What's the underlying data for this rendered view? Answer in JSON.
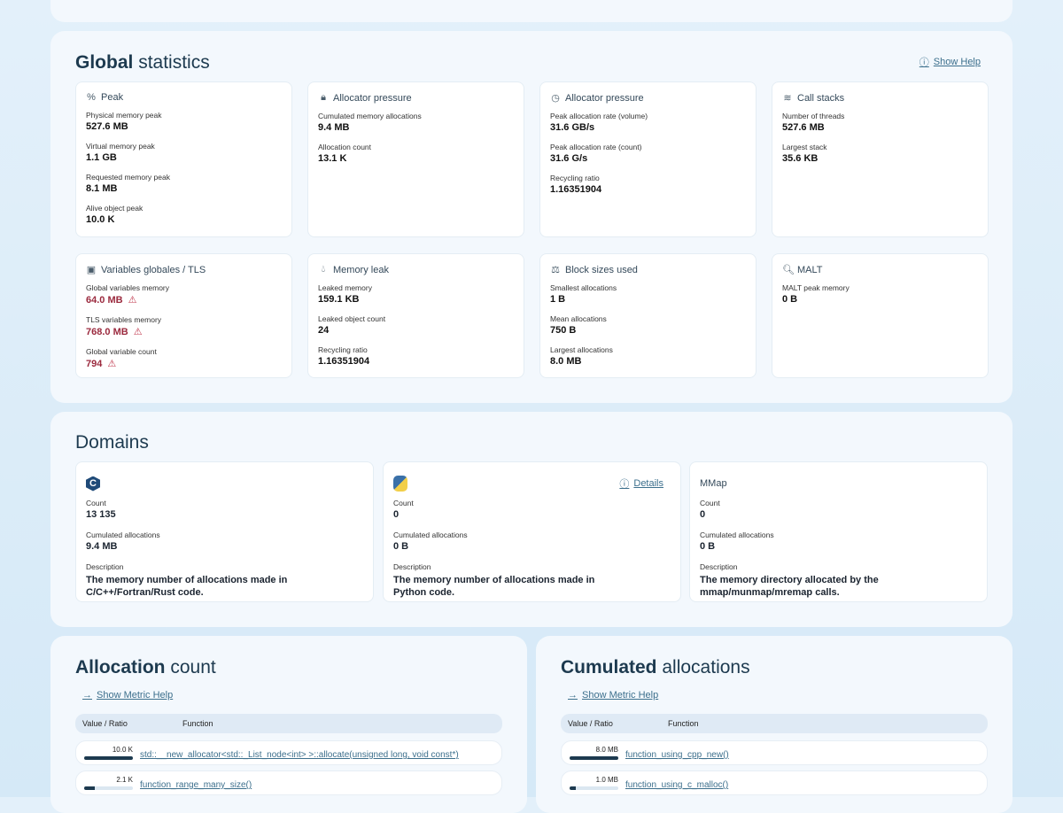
{
  "global": {
    "title_bold": "Global",
    "title_rest": "statistics",
    "help_label": "Show Help",
    "cards": [
      {
        "icon": "percent-icon",
        "glyph": "%",
        "title": "Peak",
        "metrics": [
          {
            "label": "Physical memory peak",
            "value": "527.6 MB"
          },
          {
            "label": "Virtual memory peak",
            "value": "1.1 GB"
          },
          {
            "label": "Requested memory peak",
            "value": "8.1 MB"
          },
          {
            "label": "Alive object peak",
            "value": "10.0 K"
          }
        ]
      },
      {
        "icon": "lock-icon",
        "glyph": "🔒︎",
        "title": "Allocator pressure",
        "metrics": [
          {
            "label": "Cumulated memory allocations",
            "value": "9.4 MB"
          },
          {
            "label": "Allocation count",
            "value": "13.1 K"
          }
        ]
      },
      {
        "icon": "timer-icon",
        "glyph": "◷",
        "title": "Allocator pressure",
        "metrics": [
          {
            "label": "Peak allocation rate (volume)",
            "value": "31.6 GB/s"
          },
          {
            "label": "Peak allocation rate (count)",
            "value": "31.6 G/s"
          },
          {
            "label": "Recycling ratio",
            "value": "1.16351904"
          }
        ]
      },
      {
        "icon": "layers-icon",
        "glyph": "≋",
        "title": "Call stacks",
        "metrics": [
          {
            "label": "Number of threads",
            "value": "527.6 MB"
          },
          {
            "label": "Largest stack",
            "value": "35.6 KB"
          }
        ]
      },
      {
        "icon": "memory-chip-icon",
        "glyph": "▣",
        "title": "Variables globales / TLS",
        "metrics": [
          {
            "label": "Global variables memory",
            "value": "64.0 MB",
            "warn": true
          },
          {
            "label": "TLS variables memory",
            "value": "768.0 MB",
            "warn": true
          },
          {
            "label": "Global variable count",
            "value": "794",
            "warn": true
          }
        ]
      },
      {
        "icon": "droplet-icon",
        "glyph": "💧︎",
        "title": "Memory leak",
        "metrics": [
          {
            "label": "Leaked memory",
            "value": "159.1 KB"
          },
          {
            "label": "Leaked object count",
            "value": "24"
          },
          {
            "label": "Recycling ratio",
            "value": "1.16351904"
          }
        ]
      },
      {
        "icon": "scale-icon",
        "glyph": "⚖",
        "title": "Block sizes used",
        "metrics": [
          {
            "label": "Smallest allocations",
            "value": "1 B"
          },
          {
            "label": "Mean allocations",
            "value": "750 B"
          },
          {
            "label": "Largest allocations",
            "value": "8.0 MB"
          }
        ]
      },
      {
        "icon": "search-icon",
        "glyph": "🔍︎",
        "title": "MALT",
        "metrics": [
          {
            "label": "MALT peak memory",
            "value": "0 B"
          }
        ]
      }
    ],
    "warning_icon": "⚠"
  },
  "domains": {
    "title": "Domains",
    "details_label": "Details",
    "items": [
      {
        "icon": "c-language-icon",
        "title": "",
        "count_label": "Count",
        "count": "13 135",
        "cum_label": "Cumulated allocations",
        "cum": "9.4 MB",
        "desc_label": "Description",
        "desc": "The memory number of allocations made in C/C++/Fortran/Rust code."
      },
      {
        "icon": "python-icon",
        "title": "",
        "count_label": "Count",
        "count": "0",
        "cum_label": "Cumulated allocations",
        "cum": "0 B",
        "desc_label": "Description",
        "desc": "The memory number of allocations made in Python code."
      },
      {
        "icon": "",
        "title": "MMap",
        "count_label": "Count",
        "count": "0",
        "cum_label": "Cumulated allocations",
        "cum": "0 B",
        "desc_label": "Description",
        "desc": "The memory directory allocated by the mmap/munmap/mremap calls."
      }
    ]
  },
  "alloc_count": {
    "title_bold": "Allocation",
    "title_rest": "count",
    "help_label": "Show Metric Help",
    "col_value": "Value / Ratio",
    "col_function": "Function",
    "rows": [
      {
        "value": "10.0 K",
        "ratio": 1.0,
        "function": "std::__new_allocator<std::_List_node<int> >::allocate(unsigned long, void const*)"
      },
      {
        "value": "2.1 K",
        "ratio": 0.21,
        "function": "function_range_many_size()"
      }
    ]
  },
  "cumulated": {
    "title_bold": "Cumulated",
    "title_rest": "allocations",
    "help_label": "Show Metric Help",
    "col_value": "Value / Ratio",
    "col_function": "Function",
    "rows": [
      {
        "value": "8.0 MB",
        "ratio": 1.0,
        "function": "function_using_cpp_new()"
      },
      {
        "value": "1.0 MB",
        "ratio": 0.12,
        "function": "function_using_c_malloc()"
      }
    ]
  }
}
